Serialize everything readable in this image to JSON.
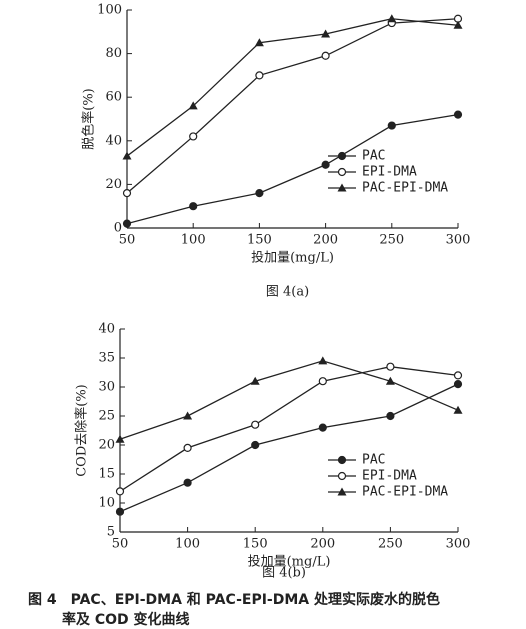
{
  "chart_data": [
    {
      "type": "line",
      "y_label": "脱色率(%)",
      "x_label": "投加量(mg/L)",
      "caption": "图 4(a)",
      "x": [
        50,
        100,
        150,
        200,
        250,
        300
      ],
      "xlim": [
        50,
        300
      ],
      "xticks": [
        50,
        100,
        150,
        200,
        250,
        300
      ],
      "ylim": [
        0,
        100
      ],
      "yticks": [
        0,
        20,
        40,
        60,
        80,
        100
      ],
      "grid": false,
      "legend": "lower right",
      "series": [
        {
          "name": "PAC",
          "color": "#222222",
          "marker": "filled-circle",
          "values": [
            2,
            10,
            16,
            29,
            47,
            52
          ]
        },
        {
          "name": "EPI-DMA",
          "color": "#222222",
          "marker": "open-circle",
          "values": [
            16,
            42,
            70,
            79,
            94,
            96
          ]
        },
        {
          "name": "PAC-EPI-DMA",
          "color": "#222222",
          "marker": "triangle",
          "values": [
            33,
            56,
            85,
            89,
            96,
            93
          ]
        }
      ]
    },
    {
      "type": "line",
      "y_label": "COD去除率(%)",
      "x_label": "投加量(mg/L)",
      "caption": "图 4(b)",
      "x": [
        50,
        100,
        150,
        200,
        250,
        300
      ],
      "xlim": [
        50,
        300
      ],
      "xticks": [
        50,
        100,
        150,
        200,
        250,
        300
      ],
      "ylim": [
        5,
        40
      ],
      "yticks": [
        5,
        10,
        15,
        20,
        25,
        30,
        35,
        40
      ],
      "grid": false,
      "legend": "lower right",
      "series": [
        {
          "name": "PAC",
          "color": "#222222",
          "marker": "filled-circle",
          "values": [
            8.5,
            13.5,
            20,
            23,
            25,
            30.5
          ]
        },
        {
          "name": "EPI-DMA",
          "color": "#222222",
          "marker": "open-circle",
          "values": [
            12,
            19.5,
            23.5,
            31,
            33.5,
            32
          ]
        },
        {
          "name": "PAC-EPI-DMA",
          "color": "#222222",
          "marker": "triangle",
          "values": [
            21,
            25,
            31,
            34.5,
            31,
            26
          ]
        }
      ]
    }
  ],
  "figure_caption": [
    "图 4　PAC、EPI-DMA 和 PAC-EPI-DMA 处理实际废水的脱色",
    "率及 COD 变化曲线"
  ]
}
